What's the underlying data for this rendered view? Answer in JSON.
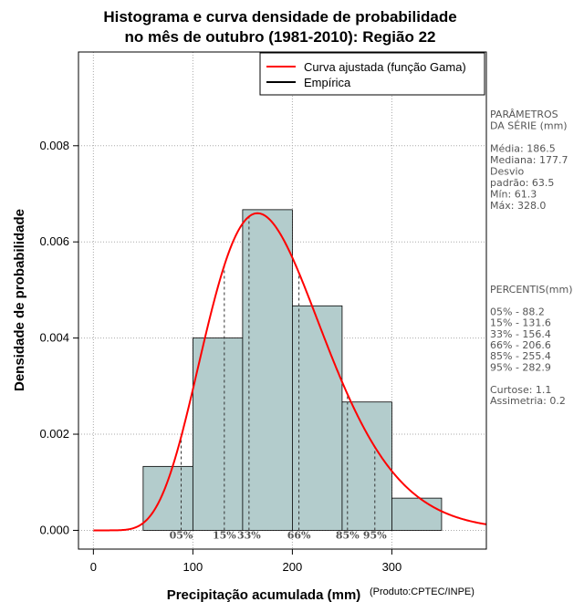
{
  "chart_data": {
    "type": "bar",
    "title_line1": "Histograma e curva densidade de probabilidade",
    "title_line2": "no mês de outubro (1981-2010): Região 22",
    "xlabel": "Precipitação acumulada (mm)",
    "ylabel": "Densidade de probabilidade",
    "credit": "(Produto:CPTEC/INPE)",
    "xlim": [
      -15,
      395
    ],
    "ylim": [
      -0.00039,
      0.00995
    ],
    "xticks": [
      0,
      100,
      200,
      300
    ],
    "xtick_labels": [
      "0",
      "100",
      "200",
      "300"
    ],
    "yticks": [
      0.0,
      0.002,
      0.004,
      0.006,
      0.008
    ],
    "ytick_labels": [
      "0.000",
      "0.002",
      "0.004",
      "0.006",
      "0.008"
    ],
    "bins": [
      {
        "from": 50,
        "to": 100,
        "density": 0.00133
      },
      {
        "from": 100,
        "to": 150,
        "density": 0.004
      },
      {
        "from": 150,
        "to": 200,
        "density": 0.00667
      },
      {
        "from": 200,
        "to": 250,
        "density": 0.00467
      },
      {
        "from": 250,
        "to": 300,
        "density": 0.00267
      },
      {
        "from": 300,
        "to": 350,
        "density": 0.00067
      }
    ],
    "bar_color": "#b3cccc",
    "curve_color": "#ff0000",
    "curve": {
      "shape": 8.6,
      "scale": 21.7,
      "x_max": 395
    },
    "percentile_markers": [
      {
        "label": "05%",
        "value": 88.2
      },
      {
        "label": "15%",
        "value": 131.6
      },
      {
        "label": "33%",
        "value": 156.4
      },
      {
        "label": "66%",
        "value": 206.6
      },
      {
        "label": "85%",
        "value": 255.4
      },
      {
        "label": "95%",
        "value": 282.9
      }
    ],
    "legend": {
      "position": "top-right",
      "entries": [
        {
          "label": "Curva ajustada (função Gama)",
          "color": "#ff0000"
        },
        {
          "label": "Empírica",
          "color": "#000000"
        }
      ]
    }
  },
  "side_panel": {
    "params_lines": [
      "PARÂMETROS",
      " DA SÉRIE (mm)",
      "",
      "Média:  186.5",
      "Mediana:  177.7",
      "Desvio",
      "padrão:  63.5",
      "Mín:  61.3",
      "Máx:  328.0"
    ],
    "percentis_lines": [
      " PERCENTIS(mm)",
      "",
      "05% -  88.2",
      "15% -  131.6",
      "33% -  156.4",
      "66% -  206.6",
      "85% -  255.4",
      "95% -  282.9",
      "",
      "Curtose:  1.1",
      "Assimetria:  0.2"
    ]
  }
}
